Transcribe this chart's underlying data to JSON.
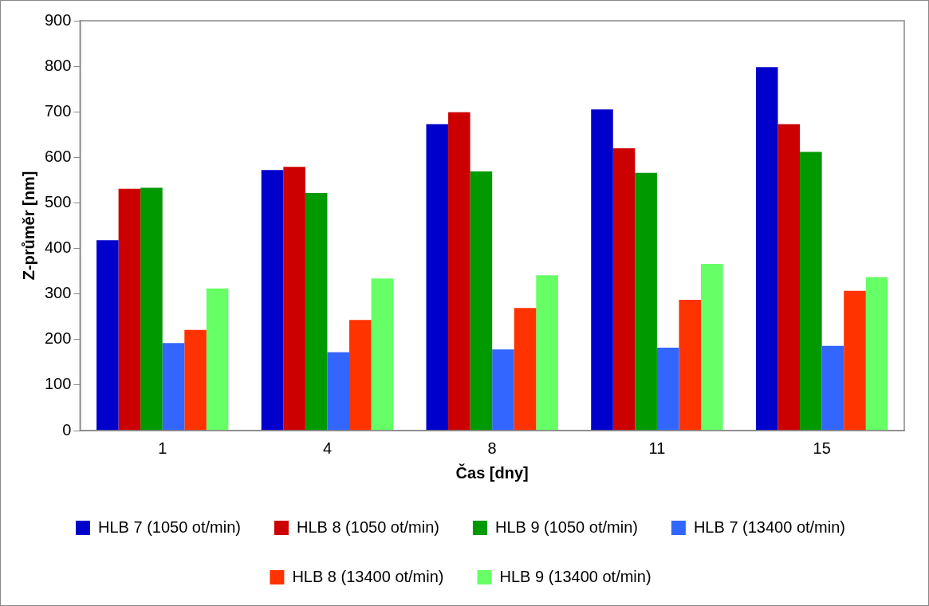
{
  "chart_data": {
    "type": "bar",
    "xlabel": "Čas [dny]",
    "ylabel": "Z-průměr [nm]",
    "categories": [
      "1",
      "4",
      "8",
      "11",
      "15"
    ],
    "series": [
      {
        "name": "HLB 7 (1050 ot/min)",
        "color": "#0000cc",
        "values": [
          418,
          572,
          673,
          705,
          798
        ]
      },
      {
        "name": "HLB 8 (1050 ot/min)",
        "color": "#cc0000",
        "values": [
          531,
          579,
          699,
          620,
          673
        ]
      },
      {
        "name": "HLB 9 (1050 ot/min)",
        "color": "#009900",
        "values": [
          533,
          522,
          569,
          566,
          612
        ]
      },
      {
        "name": "HLB 7 (13400 ot/min)",
        "color": "#3366ff",
        "values": [
          192,
          172,
          178,
          182,
          186
        ]
      },
      {
        "name": "HLB 8 (13400 ot/min)",
        "color": "#ff3300",
        "values": [
          221,
          243,
          269,
          287,
          307
        ]
      },
      {
        "name": "HLB 9 (13400 ot/min)",
        "color": "#66ff66",
        "values": [
          312,
          334,
          341,
          366,
          337
        ]
      }
    ],
    "ylim": [
      0,
      900
    ],
    "yticks": [
      0,
      100,
      200,
      300,
      400,
      500,
      600,
      700,
      800,
      900
    ],
    "grid": false,
    "legend": "bottom"
  }
}
